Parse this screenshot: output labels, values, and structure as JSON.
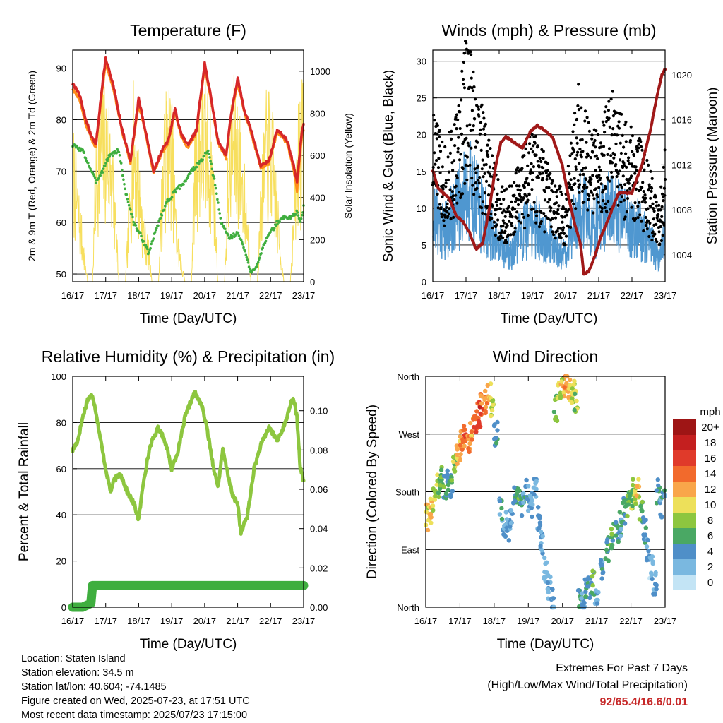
{
  "colors": {
    "temp_2m": "#d62728",
    "temp_9m": "#ff8c1a",
    "dewpoint": "#3fae3f",
    "solar": "#f7df5e",
    "wind": "#4f97d0",
    "gust": "#000000",
    "pressure": "#a01818",
    "rh": "#8dc63f",
    "precip": "#3fae3f"
  },
  "station": {
    "location": "Location: Staten Island",
    "elevation": "Station elevation: 34.5 m",
    "latlon": "Station lat/lon: 40.604; -74.1485",
    "created": "Figure created on Wed, 2025-07-23, at 17:51 UTC",
    "latest": "Most recent data timestamp: 2025/07/23 17:15:00"
  },
  "extremes": {
    "title": "Extremes For Past 7 Days",
    "subtitle": "(High/Low/Max Wind/Total Precipitation)",
    "values": "92/65.4/16.6/0.01"
  },
  "time_ticks": [
    "16/17",
    "17/17",
    "18/17",
    "19/17",
    "20/17",
    "21/17",
    "22/17",
    "23/17"
  ],
  "chart_data": [
    {
      "type": "line",
      "title": "Temperature (F)",
      "xlabel": "Time (Day/UTC)",
      "ylabel": "2m & 9m T (Red, Orange) & 2m Td (Green)",
      "y2label": "Solar Insolation (Yellow)",
      "x_unit": "days since 16/17 UTC",
      "ylim": [
        48.5,
        93.5
      ],
      "y2lim": [
        0,
        1100
      ],
      "yticks": [
        50,
        60,
        70,
        80,
        90
      ],
      "y2ticks": [
        0,
        200,
        400,
        600,
        800,
        1000
      ],
      "series": [
        {
          "name": "2m T",
          "axis": "left",
          "x": [
            0,
            0.2,
            0.4,
            0.55,
            0.7,
            0.85,
            1.0,
            1.25,
            1.5,
            1.75,
            2.0,
            2.2,
            2.45,
            2.7,
            2.9,
            3.1,
            3.3,
            3.5,
            3.75,
            4.0,
            4.2,
            4.4,
            4.65,
            4.8,
            5.0,
            5.2,
            5.45,
            5.7,
            5.95,
            6.2,
            6.5,
            6.7,
            6.8,
            6.95,
            7.0
          ],
          "values": [
            87,
            85,
            80,
            77,
            75,
            84,
            92,
            86,
            78,
            72,
            84,
            78,
            70,
            74,
            76,
            82,
            77,
            75,
            78,
            91,
            84,
            76,
            73,
            81,
            88,
            82,
            77,
            71,
            72,
            78,
            76,
            71,
            68,
            78,
            79
          ]
        },
        {
          "name": "9m T",
          "axis": "left",
          "x": [
            0,
            0.2,
            0.4,
            0.55,
            0.7,
            0.85,
            1.0,
            1.25,
            1.5,
            1.75,
            2.0,
            2.2,
            2.45,
            2.7,
            2.9,
            3.1,
            3.3,
            3.5,
            3.75,
            4.0,
            4.2,
            4.4,
            4.65,
            4.8,
            5.0,
            5.2,
            5.45,
            5.7,
            5.95,
            6.2,
            6.5,
            6.7,
            6.8,
            6.95,
            7.0
          ],
          "values": [
            86,
            84,
            79,
            76.5,
            74.5,
            83,
            91,
            85.5,
            77.5,
            71.5,
            83,
            77.5,
            69.5,
            73.5,
            75.5,
            81.5,
            76.5,
            74.5,
            77.5,
            90,
            83.5,
            75.5,
            72.5,
            80.5,
            87,
            81.5,
            76.5,
            70.5,
            71.5,
            77.5,
            75.5,
            70,
            66,
            77,
            78
          ]
        },
        {
          "name": "2m Td",
          "axis": "left",
          "x": [
            0,
            0.3,
            0.5,
            0.7,
            0.9,
            1.1,
            1.4,
            1.6,
            1.85,
            2.1,
            2.3,
            2.6,
            2.85,
            3.1,
            3.4,
            3.6,
            3.9,
            4.1,
            4.3,
            4.5,
            4.75,
            5.0,
            5.2,
            5.4,
            5.6,
            5.8,
            6.0,
            6.2,
            6.4,
            6.6,
            6.8,
            6.9,
            7.0
          ],
          "values": [
            75,
            74,
            71,
            68,
            70,
            73,
            74,
            66,
            60,
            57,
            54,
            60,
            64,
            66,
            68,
            70,
            72,
            74,
            68,
            60,
            57,
            58,
            55,
            50,
            52,
            56,
            58,
            60,
            61,
            61,
            62,
            60,
            63
          ]
        },
        {
          "name": "Solar Insolation",
          "axis": "right",
          "x": [
            0,
            0.45,
            0.6,
            0.7,
            0.85,
            1.0,
            1.15,
            1.3,
            1.4,
            1.45,
            1.6,
            1.7,
            1.85,
            2.0,
            2.15,
            2.3,
            2.4,
            2.45,
            2.6,
            2.7,
            2.85,
            3.0,
            3.15,
            3.3,
            3.4,
            3.45,
            3.6,
            3.7,
            3.85,
            4.0,
            4.15,
            4.3,
            4.4,
            4.45,
            4.6,
            4.7,
            4.85,
            5.0,
            5.15,
            5.3,
            5.4,
            5.45,
            5.6,
            5.7,
            5.85,
            6.0,
            6.15,
            6.3,
            6.4,
            6.45,
            6.6,
            6.7,
            6.85,
            7.0
          ],
          "values": [
            800,
            0,
            0,
            700,
            1000,
            950,
            900,
            400,
            0,
            0,
            0,
            400,
            1000,
            650,
            350,
            200,
            0,
            0,
            0,
            600,
            1000,
            950,
            300,
            100,
            0,
            0,
            0,
            800,
            1000,
            1000,
            900,
            600,
            0,
            0,
            0,
            600,
            1000,
            950,
            700,
            400,
            0,
            0,
            0,
            500,
            900,
            1000,
            600,
            200,
            0,
            0,
            0,
            400,
            950,
            1000
          ]
        }
      ]
    },
    {
      "type": "scatter",
      "title": "Winds (mph) & Pressure (mb)",
      "xlabel": "Time (Day/UTC)",
      "ylabel": "Sonic Wind & Gust (Blue, Black)",
      "y2label": "Station Pressure (Maroon)",
      "x_unit": "days since 16/17 UTC",
      "ylim": [
        0,
        31.5
      ],
      "y2lim": [
        1001.6,
        1022.2
      ],
      "yticks": [
        0,
        5,
        10,
        15,
        20,
        25,
        30
      ],
      "y2ticks": [
        1004,
        1008,
        1012,
        1016,
        1020
      ],
      "series": [
        {
          "name": "Sonic Wind (envelope)",
          "axis": "left",
          "x": [
            0,
            0.2,
            0.4,
            0.6,
            0.8,
            1.0,
            1.2,
            1.4,
            1.6,
            1.8,
            2.0,
            2.2,
            2.4,
            2.6,
            2.8,
            3.0,
            3.2,
            3.4,
            3.6,
            3.8,
            4.0,
            4.2,
            4.4,
            4.6,
            4.8,
            5.0,
            5.2,
            5.4,
            5.6,
            5.8,
            6.0,
            6.2,
            6.4,
            6.6,
            6.8,
            7.0
          ],
          "values": [
            9,
            8,
            7,
            9,
            10,
            13,
            12,
            10,
            8,
            6,
            5,
            4,
            4,
            6,
            7,
            8,
            7,
            6,
            5,
            4,
            4,
            7,
            10,
            9,
            7,
            8,
            9,
            10,
            9,
            8,
            8,
            7,
            6,
            5,
            3,
            7
          ]
        },
        {
          "name": "Gust (envelope)",
          "axis": "left",
          "x": [
            0,
            0.2,
            0.4,
            0.6,
            0.8,
            1.0,
            1.2,
            1.4,
            1.6,
            1.8,
            2.0,
            2.2,
            2.4,
            2.6,
            2.8,
            3.0,
            3.2,
            3.4,
            3.6,
            3.8,
            4.0,
            4.2,
            4.4,
            4.6,
            4.8,
            5.0,
            5.2,
            5.4,
            5.6,
            5.8,
            6.0,
            6.2,
            6.4,
            6.6,
            6.8,
            7.0
          ],
          "values": [
            17,
            15,
            13,
            15,
            18,
            24,
            22,
            18,
            15,
            12,
            10,
            9,
            9,
            12,
            13,
            15,
            13,
            12,
            10,
            9,
            9,
            14,
            19,
            17,
            14,
            15,
            17,
            18,
            17,
            15,
            15,
            14,
            12,
            10,
            7,
            13
          ]
        },
        {
          "name": "Station Pressure",
          "axis": "right",
          "x": [
            0,
            0.15,
            0.3,
            0.5,
            0.7,
            0.9,
            1.1,
            1.3,
            1.5,
            1.7,
            1.9,
            2.05,
            2.2,
            2.45,
            2.7,
            2.95,
            3.15,
            3.4,
            3.6,
            3.9,
            4.1,
            4.3,
            4.45,
            4.55,
            4.7,
            4.9,
            5.05,
            5.2,
            5.4,
            5.6,
            5.8,
            6.0,
            6.3,
            6.55,
            6.75,
            6.9,
            7.0
          ],
          "values": [
            1011.5,
            1010,
            1009.5,
            1009,
            1007.5,
            1007,
            1006,
            1004.5,
            1005,
            1008,
            1012,
            1014,
            1014.5,
            1014,
            1013.5,
            1015,
            1015.5,
            1015,
            1014.5,
            1012,
            1009,
            1006.5,
            1005,
            1002.3,
            1002.5,
            1004,
            1005.5,
            1006.5,
            1008,
            1009.5,
            1009.5,
            1009.5,
            1012,
            1015,
            1018,
            1020,
            1020.5
          ]
        }
      ]
    },
    {
      "type": "line",
      "title": "Relative Humidity (%) & Precipitation (in)",
      "xlabel": "Time (Day/UTC)",
      "ylabel": "Percent & Total Rainfall",
      "x_unit": "days since 16/17 UTC",
      "ylim": [
        0,
        100
      ],
      "y2lim": [
        0,
        0.1175
      ],
      "yticks": [
        0,
        20,
        40,
        60,
        80,
        100
      ],
      "y2ticks": [
        "0.00",
        "0.02",
        "0.04",
        "0.06",
        "0.08",
        "0.10"
      ],
      "series": [
        {
          "name": "Relative Humidity",
          "axis": "left",
          "x": [
            0,
            0.15,
            0.3,
            0.45,
            0.6,
            0.7,
            0.85,
            1.0,
            1.15,
            1.25,
            1.45,
            1.65,
            1.85,
            2.0,
            2.15,
            2.35,
            2.6,
            2.8,
            3.0,
            3.2,
            3.4,
            3.55,
            3.7,
            3.8,
            3.9,
            4.0,
            4.1,
            4.25,
            4.4,
            4.55,
            4.7,
            4.85,
            5.0,
            5.1,
            5.3,
            5.5,
            5.7,
            5.95,
            6.2,
            6.45,
            6.6,
            6.7,
            6.8,
            6.9,
            7.0
          ],
          "values": [
            68,
            72,
            82,
            90,
            92,
            85,
            72,
            60,
            50,
            55,
            58,
            50,
            45,
            38,
            55,
            70,
            78,
            72,
            60,
            68,
            82,
            88,
            93,
            90,
            88,
            82,
            75,
            62,
            52,
            68,
            58,
            48,
            45,
            32,
            40,
            60,
            70,
            78,
            72,
            80,
            88,
            90,
            82,
            60,
            55
          ]
        },
        {
          "name": "Total Precipitation",
          "axis": "right",
          "x": [
            0,
            0.3,
            0.55,
            0.6,
            0.65,
            3.5,
            7.0
          ],
          "values": [
            0,
            0,
            0.002,
            0.011,
            0.011,
            0.011,
            0.011
          ]
        }
      ]
    },
    {
      "type": "scatter",
      "title": "Wind Direction",
      "xlabel": "Time (Day/UTC)",
      "ylabel": "Direction (Colored By Speed)",
      "x_unit": "days since 16/17 UTC",
      "ylim": [
        0,
        360
      ],
      "yticks": [
        "North",
        "East",
        "South",
        "West",
        "North"
      ],
      "colorbar": {
        "unit": "mph",
        "labels": [
          "20+",
          "18",
          "16",
          "14",
          "12",
          "10",
          "8",
          "6",
          "4",
          "2",
          "0"
        ],
        "colors": [
          "#9e1515",
          "#c41f1f",
          "#e03a2a",
          "#f26a2c",
          "#f9a64a",
          "#ede05a",
          "#8dc63f",
          "#4aa864",
          "#4f8fc8",
          "#7ab8e0",
          "#c3e4f5"
        ]
      },
      "series": [
        {
          "name": "Direction",
          "axis": "left",
          "x": [
            0.05,
            0.15,
            0.25,
            0.35,
            0.45,
            0.55,
            0.65,
            0.75,
            0.85,
            0.95,
            1.05,
            1.15,
            1.25,
            1.35,
            1.45,
            1.55,
            1.65,
            1.75,
            1.85,
            1.95,
            2.05,
            2.2,
            2.3,
            2.4,
            2.5,
            2.6,
            2.7,
            2.8,
            2.9,
            3.0,
            3.1,
            3.2,
            3.3,
            3.4,
            3.5,
            3.6,
            3.7,
            3.8,
            3.9,
            4.0,
            4.1,
            4.2,
            4.3,
            4.4,
            4.5,
            4.6,
            4.7,
            4.8,
            4.9,
            5.0,
            5.15,
            5.3,
            5.45,
            5.6,
            5.7,
            5.8,
            5.9,
            6.0,
            6.1,
            6.2,
            6.3,
            6.4,
            6.5,
            6.6,
            6.7,
            6.8,
            6.9,
            7.0
          ],
          "values": [
            140,
            150,
            170,
            190,
            200,
            185,
            200,
            190,
            220,
            240,
            255,
            265,
            260,
            280,
            290,
            300,
            315,
            320,
            330,
            310,
            270,
            150,
            130,
            120,
            140,
            170,
            175,
            160,
            180,
            170,
            160,
            180,
            140,
            100,
            60,
            30,
            10,
            310,
            330,
            345,
            350,
            340,
            335,
            320,
            20,
            10,
            25,
            30,
            40,
            20,
            60,
            90,
            110,
            120,
            130,
            150,
            160,
            170,
            180,
            190,
            150,
            120,
            90,
            60,
            40,
            180,
            160,
            170
          ],
          "speeds": [
            10,
            11,
            9,
            8,
            7,
            6,
            5,
            6,
            8,
            11,
            13,
            14,
            13,
            12,
            15,
            16,
            14,
            12,
            11,
            9,
            5,
            4,
            3,
            2,
            3,
            5,
            6,
            5,
            4,
            4,
            3,
            3,
            3,
            3,
            3,
            3,
            3,
            7,
            9,
            10,
            12,
            11,
            9,
            8,
            5,
            3,
            4,
            5,
            6,
            3,
            4,
            5,
            6,
            5,
            4,
            5,
            6,
            8,
            9,
            10,
            6,
            5,
            3,
            2,
            2,
            5,
            4,
            4
          ]
        }
      ]
    }
  ]
}
